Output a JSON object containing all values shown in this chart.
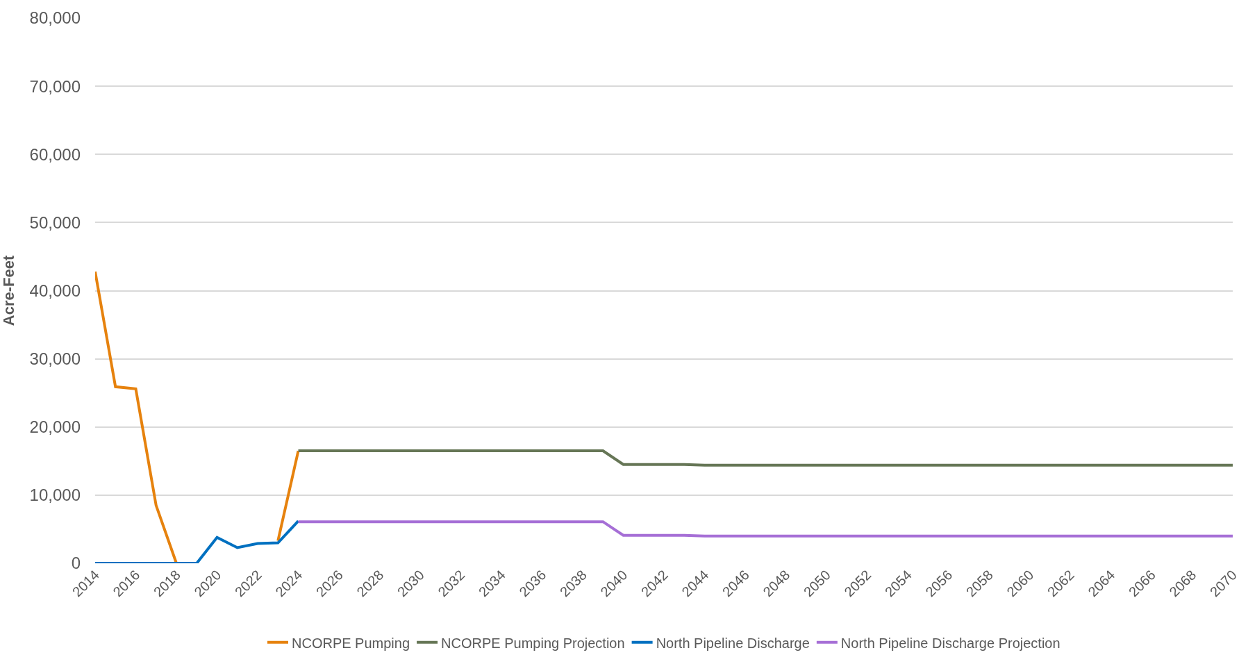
{
  "chart_data": {
    "type": "line",
    "ylabel": "Acre-Feet",
    "xlim": [
      2014,
      2070
    ],
    "xticks": [
      2014,
      2016,
      2018,
      2020,
      2022,
      2024,
      2026,
      2028,
      2030,
      2032,
      2034,
      2036,
      2038,
      2040,
      2042,
      2044,
      2046,
      2048,
      2050,
      2052,
      2054,
      2056,
      2058,
      2060,
      2062,
      2064,
      2066,
      2068,
      2070
    ],
    "ylim": [
      0,
      80000
    ],
    "yticks": [
      {
        "value": 0,
        "label": "0"
      },
      {
        "value": 10000,
        "label": "10,000"
      },
      {
        "value": 20000,
        "label": "20,000"
      },
      {
        "value": 30000,
        "label": "30,000"
      },
      {
        "value": 40000,
        "label": "40,000"
      },
      {
        "value": 50000,
        "label": "50,000"
      },
      {
        "value": 60000,
        "label": "60,000"
      },
      {
        "value": 70000,
        "label": "70,000"
      },
      {
        "value": 80000,
        "label": "80,000"
      }
    ],
    "grid": "y",
    "legend": "bottom",
    "marker": "none",
    "line_style": "solid",
    "series": [
      {
        "name": "NCORPE Pumping",
        "color": "#e6820e",
        "x": [
          2014,
          2015,
          2016,
          2017,
          2018,
          2019,
          2020,
          2021,
          2022,
          2023,
          2024
        ],
        "values": [
          42800,
          25900,
          25600,
          8500,
          0,
          0,
          null,
          null,
          null,
          3300,
          16500
        ]
      },
      {
        "name": "NCORPE Pumping Projection",
        "color": "#667656",
        "x": [
          2024,
          2039,
          2040,
          2043,
          2044,
          2070
        ],
        "values": [
          16500,
          16500,
          14500,
          14500,
          14400,
          14400
        ]
      },
      {
        "name": "North Pipeline Discharge",
        "color": "#0070c0",
        "x": [
          2014,
          2015,
          2016,
          2017,
          2018,
          2019,
          2020,
          2021,
          2022,
          2023,
          2024
        ],
        "values": [
          0,
          0,
          0,
          0,
          0,
          0,
          3800,
          2300,
          2900,
          3000,
          6200
        ]
      },
      {
        "name": "North Pipeline Discharge Projection",
        "color": "#a66fd6",
        "x": [
          2024,
          2039,
          2040,
          2043,
          2044,
          2070
        ],
        "values": [
          6100,
          6100,
          4100,
          4100,
          4000,
          4000
        ]
      }
    ]
  }
}
